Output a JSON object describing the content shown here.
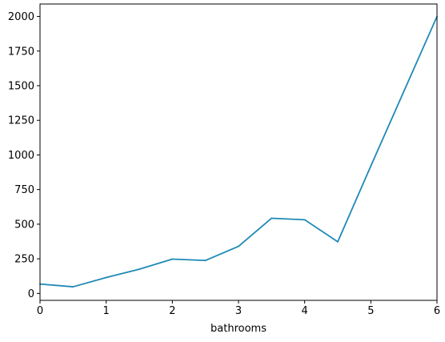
{
  "chart_data": {
    "type": "line",
    "title": "",
    "xlabel": "bathrooms",
    "ylabel": "",
    "x": [
      0,
      0.5,
      1,
      1.5,
      2,
      2.5,
      3,
      3.5,
      4,
      4.5,
      5,
      5.5,
      6
    ],
    "series": [
      {
        "values": [
          68,
          48,
          115,
          175,
          248,
          238,
          340,
          543,
          532,
          373,
          920,
          1460,
          2000
        ],
        "color": "#1f89b6"
      }
    ],
    "xlim": [
      0,
      6
    ],
    "ylim": [
      -50,
      2090
    ],
    "xticks": [
      0,
      1,
      2,
      3,
      4,
      5,
      6
    ],
    "yticks": [
      0,
      250,
      500,
      750,
      1000,
      1250,
      1500,
      1750,
      2000
    ],
    "grid": false,
    "legend": "none"
  }
}
